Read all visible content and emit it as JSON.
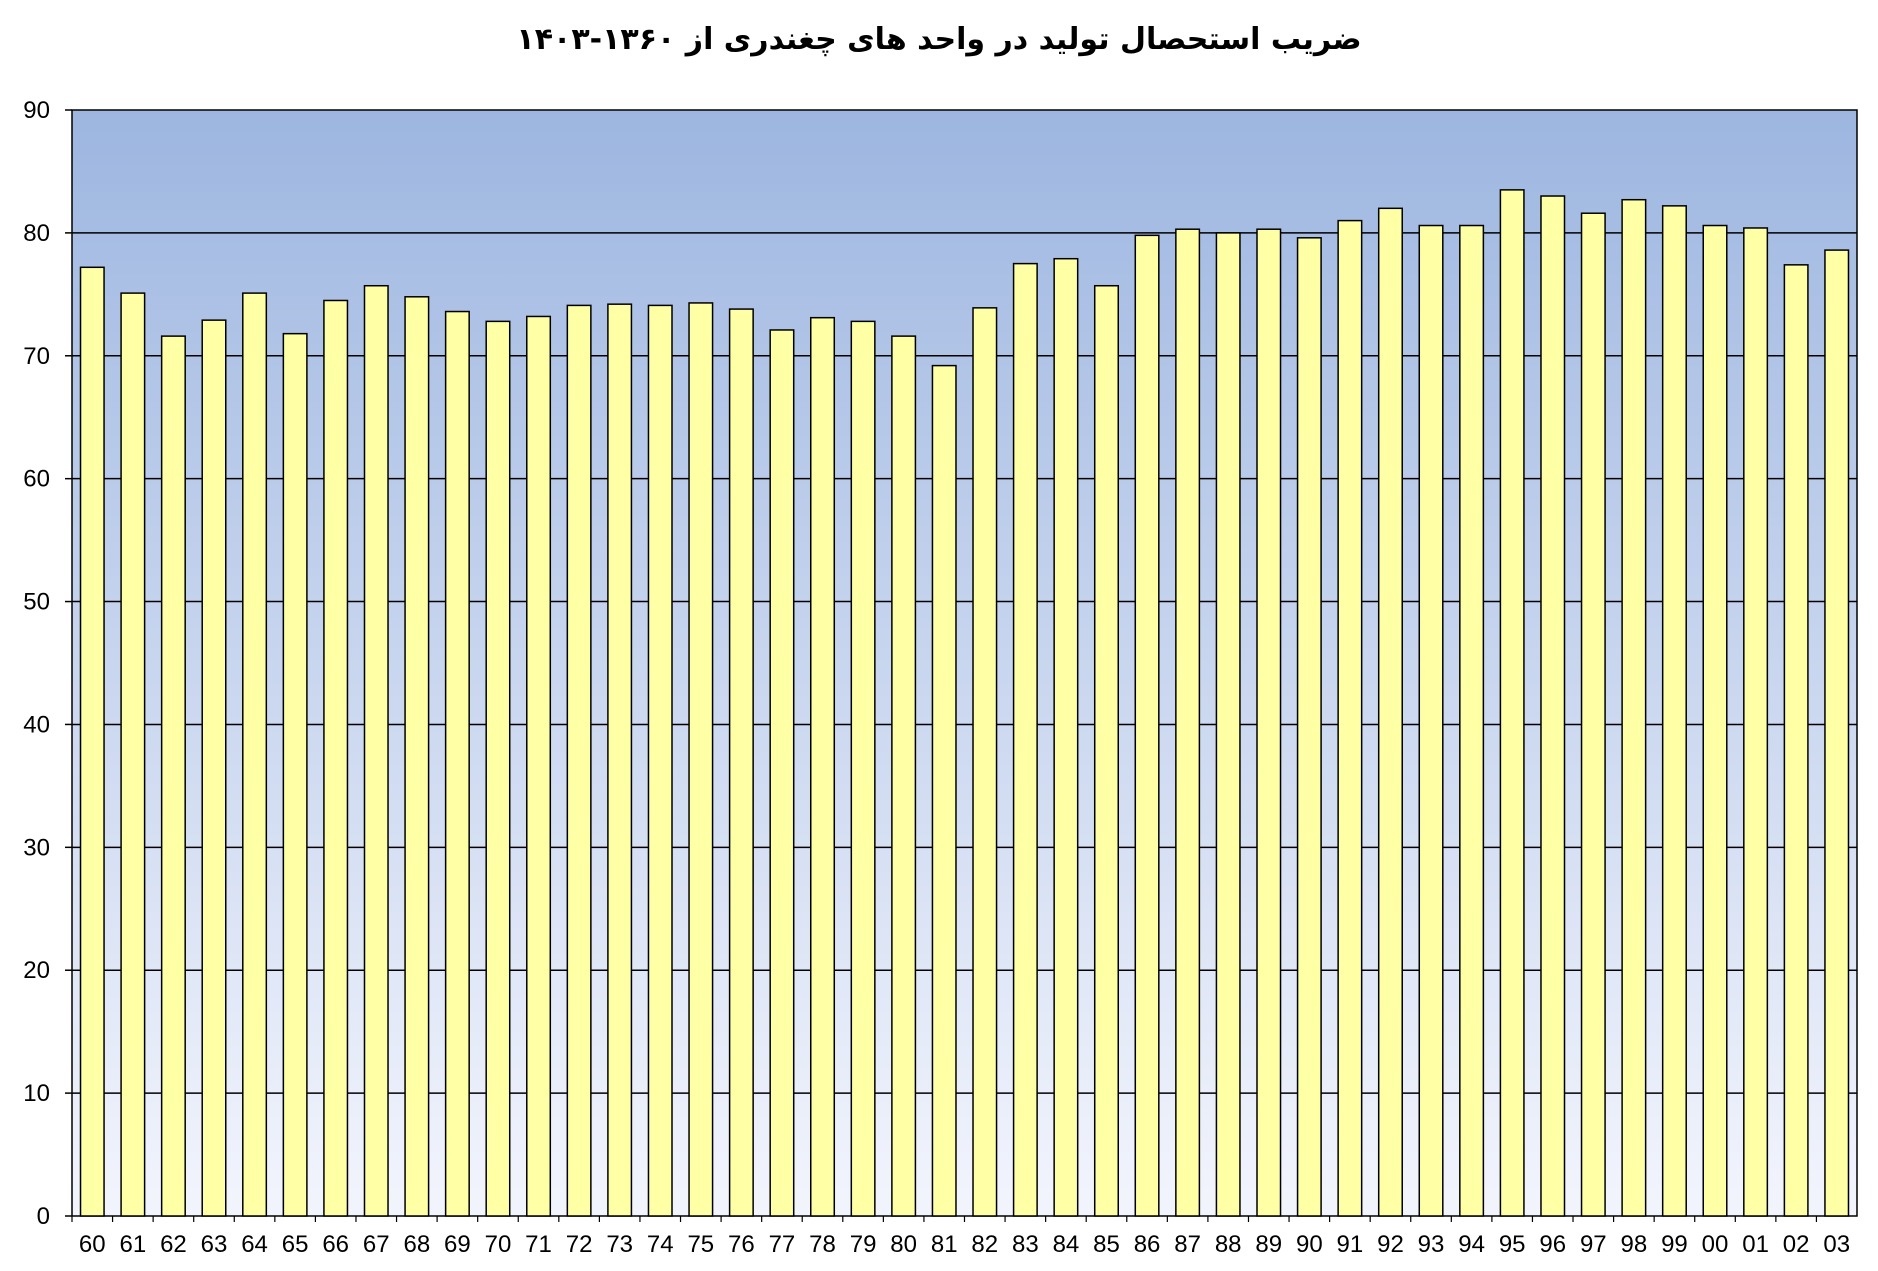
{
  "chart_data": {
    "type": "bar",
    "title": "ضریب استحصال تولید در واحد های چغندری از ۱۳۶۰-۱۴۰۳",
    "xlabel": "",
    "ylabel": "",
    "ylim": [
      0,
      90
    ],
    "yticks": [
      0,
      10,
      20,
      30,
      40,
      50,
      60,
      70,
      80,
      90
    ],
    "grid": true,
    "legend": "none",
    "colors": {
      "bar": "#FFFFA6",
      "bar_stroke": "#000000",
      "plot_top": "#9DB6E0",
      "plot_bottom": "#F3F5FD",
      "gridline": "#000000"
    },
    "categories": [
      "60",
      "61",
      "62",
      "63",
      "64",
      "65",
      "66",
      "67",
      "68",
      "69",
      "70",
      "71",
      "72",
      "73",
      "74",
      "75",
      "76",
      "77",
      "78",
      "79",
      "80",
      "81",
      "82",
      "83",
      "84",
      "85",
      "86",
      "87",
      "88",
      "89",
      "90",
      "91",
      "92",
      "93",
      "94",
      "95",
      "96",
      "97",
      "98",
      "99",
      "00",
      "01",
      "02",
      "03"
    ],
    "values": [
      77.2,
      75.1,
      71.6,
      72.9,
      75.1,
      71.8,
      74.5,
      75.7,
      74.8,
      73.6,
      72.8,
      73.2,
      74.1,
      74.2,
      74.1,
      74.3,
      73.8,
      72.1,
      73.1,
      72.8,
      71.6,
      69.2,
      73.9,
      77.5,
      77.9,
      75.7,
      79.8,
      80.3,
      80.0,
      80.3,
      79.6,
      81.0,
      82.0,
      80.6,
      80.6,
      83.5,
      83.0,
      81.6,
      82.7,
      82.2,
      80.6,
      80.4,
      77.4,
      78.6
    ]
  }
}
